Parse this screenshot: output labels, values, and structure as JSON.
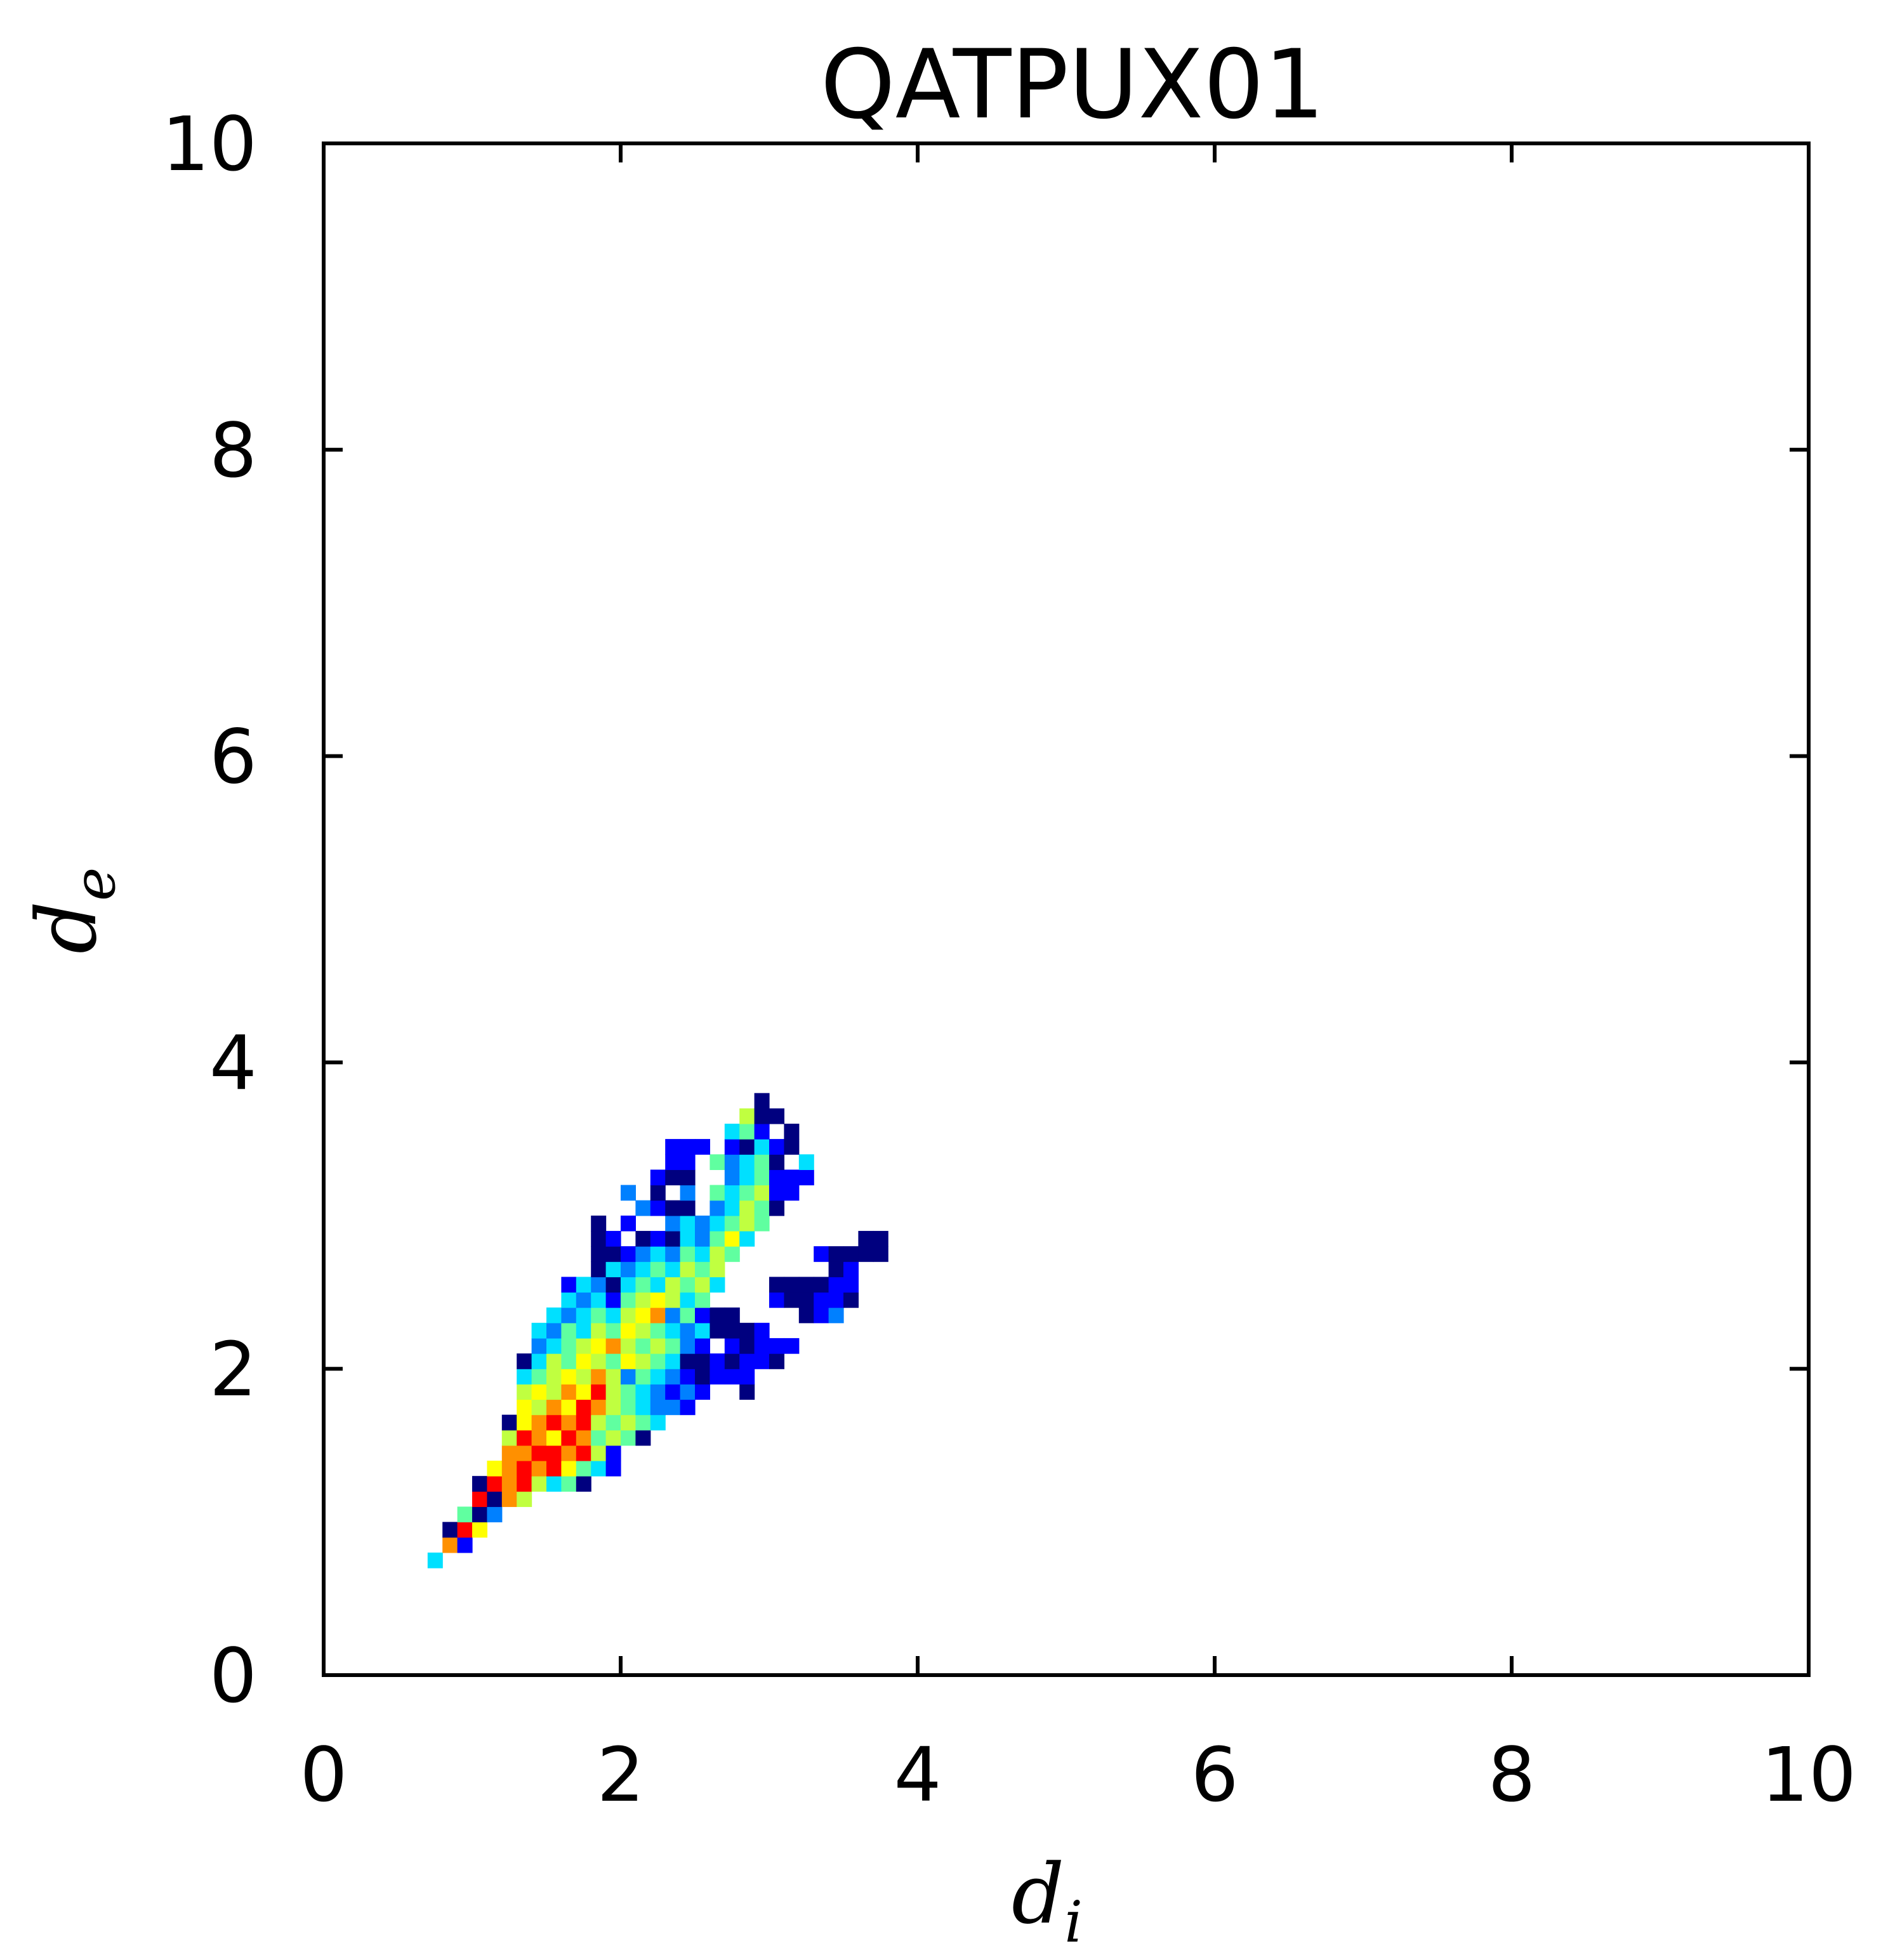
{
  "chart_data": {
    "type": "heatmap",
    "title": "QATPUX01",
    "xlabel": "d",
    "xlabel_sub": "i",
    "ylabel": "d",
    "ylabel_sub": "e",
    "xlim": [
      0,
      10
    ],
    "ylim": [
      0,
      10
    ],
    "xticks": [
      "0",
      "2",
      "4",
      "6",
      "8",
      "10"
    ],
    "yticks": [
      "0",
      "2",
      "4",
      "6",
      "8",
      "10"
    ],
    "grid": false,
    "bin_size": 0.1,
    "colormap": [
      "#00007f",
      "#0000ff",
      "#0080ff",
      "#00e0ff",
      "#60ffa0",
      "#c0ff40",
      "#ffff00",
      "#ff9000",
      "#ff0000"
    ],
    "cells": [
      [
        0.75,
        0.75,
        3
      ],
      [
        0.85,
        0.85,
        7
      ],
      [
        0.95,
        0.85,
        1
      ],
      [
        0.85,
        0.95,
        0
      ],
      [
        0.95,
        0.95,
        8
      ],
      [
        1.05,
        0.95,
        6
      ],
      [
        0.95,
        1.05,
        4
      ],
      [
        1.05,
        1.05,
        0
      ],
      [
        1.15,
        1.05,
        2
      ],
      [
        1.05,
        1.15,
        8
      ],
      [
        1.15,
        1.15,
        0
      ],
      [
        1.25,
        1.15,
        7
      ],
      [
        1.35,
        1.15,
        5
      ],
      [
        1.05,
        1.25,
        0
      ],
      [
        1.15,
        1.25,
        8
      ],
      [
        1.25,
        1.25,
        7
      ],
      [
        1.35,
        1.25,
        8
      ],
      [
        1.45,
        1.25,
        5
      ],
      [
        1.55,
        1.25,
        3
      ],
      [
        1.65,
        1.25,
        4
      ],
      [
        1.75,
        1.25,
        0
      ],
      [
        1.15,
        1.35,
        6
      ],
      [
        1.25,
        1.35,
        7
      ],
      [
        1.35,
        1.35,
        8
      ],
      [
        1.45,
        1.35,
        7
      ],
      [
        1.55,
        1.35,
        8
      ],
      [
        1.65,
        1.35,
        6
      ],
      [
        1.75,
        1.35,
        4
      ],
      [
        1.85,
        1.35,
        3
      ],
      [
        1.95,
        1.35,
        1
      ],
      [
        1.25,
        1.45,
        7
      ],
      [
        1.35,
        1.45,
        7
      ],
      [
        1.45,
        1.45,
        8
      ],
      [
        1.55,
        1.45,
        8
      ],
      [
        1.65,
        1.45,
        7
      ],
      [
        1.75,
        1.45,
        8
      ],
      [
        1.85,
        1.45,
        5
      ],
      [
        1.95,
        1.45,
        1
      ],
      [
        1.25,
        1.55,
        5
      ],
      [
        1.35,
        1.55,
        8
      ],
      [
        1.45,
        1.55,
        7
      ],
      [
        1.55,
        1.55,
        6
      ],
      [
        1.65,
        1.55,
        8
      ],
      [
        1.75,
        1.55,
        7
      ],
      [
        1.85,
        1.55,
        4
      ],
      [
        1.95,
        1.55,
        5
      ],
      [
        2.05,
        1.55,
        4
      ],
      [
        2.15,
        1.55,
        0
      ],
      [
        1.25,
        1.65,
        0
      ],
      [
        1.35,
        1.65,
        6
      ],
      [
        1.45,
        1.65,
        7
      ],
      [
        1.55,
        1.65,
        8
      ],
      [
        1.65,
        1.65,
        7
      ],
      [
        1.75,
        1.65,
        8
      ],
      [
        1.85,
        1.65,
        5
      ],
      [
        1.95,
        1.65,
        4
      ],
      [
        2.05,
        1.65,
        5
      ],
      [
        2.15,
        1.65,
        4
      ],
      [
        2.25,
        1.65,
        3
      ],
      [
        1.35,
        1.75,
        6
      ],
      [
        1.45,
        1.75,
        5
      ],
      [
        1.55,
        1.75,
        7
      ],
      [
        1.65,
        1.75,
        6
      ],
      [
        1.75,
        1.75,
        8
      ],
      [
        1.85,
        1.75,
        7
      ],
      [
        1.95,
        1.75,
        5
      ],
      [
        2.05,
        1.75,
        4
      ],
      [
        2.15,
        1.75,
        3
      ],
      [
        2.25,
        1.75,
        2
      ],
      [
        2.35,
        1.75,
        2
      ],
      [
        2.45,
        1.75,
        1
      ],
      [
        1.35,
        1.85,
        5
      ],
      [
        1.45,
        1.85,
        6
      ],
      [
        1.55,
        1.85,
        5
      ],
      [
        1.65,
        1.85,
        7
      ],
      [
        1.75,
        1.85,
        6
      ],
      [
        1.85,
        1.85,
        8
      ],
      [
        1.95,
        1.85,
        5
      ],
      [
        2.05,
        1.85,
        4
      ],
      [
        2.15,
        1.85,
        3
      ],
      [
        2.25,
        1.85,
        2
      ],
      [
        2.35,
        1.85,
        1
      ],
      [
        2.45,
        1.85,
        2
      ],
      [
        2.55,
        1.85,
        1
      ],
      [
        2.85,
        1.85,
        0
      ],
      [
        1.35,
        1.95,
        3
      ],
      [
        1.45,
        1.95,
        4
      ],
      [
        1.55,
        1.95,
        5
      ],
      [
        1.65,
        1.95,
        6
      ],
      [
        1.75,
        1.95,
        5
      ],
      [
        1.85,
        1.95,
        7
      ],
      [
        1.95,
        1.95,
        5
      ],
      [
        2.05,
        1.95,
        2
      ],
      [
        2.15,
        1.95,
        4
      ],
      [
        2.25,
        1.95,
        3
      ],
      [
        2.35,
        1.95,
        2
      ],
      [
        2.45,
        1.95,
        1
      ],
      [
        2.55,
        1.95,
        0
      ],
      [
        2.65,
        1.95,
        1
      ],
      [
        2.75,
        1.95,
        1
      ],
      [
        2.85,
        1.95,
        1
      ],
      [
        1.35,
        2.05,
        0
      ],
      [
        1.45,
        2.05,
        3
      ],
      [
        1.55,
        2.05,
        5
      ],
      [
        1.65,
        2.05,
        4
      ],
      [
        1.75,
        2.05,
        6
      ],
      [
        1.85,
        2.05,
        5
      ],
      [
        1.95,
        2.05,
        4
      ],
      [
        2.05,
        2.05,
        6
      ],
      [
        2.15,
        2.05,
        5
      ],
      [
        2.25,
        2.05,
        4
      ],
      [
        2.35,
        2.05,
        3
      ],
      [
        2.45,
        2.05,
        0
      ],
      [
        2.55,
        2.05,
        0
      ],
      [
        2.65,
        2.05,
        1
      ],
      [
        2.75,
        2.05,
        0
      ],
      [
        2.85,
        2.05,
        1
      ],
      [
        2.95,
        2.05,
        1
      ],
      [
        3.05,
        2.05,
        0
      ],
      [
        1.45,
        2.15,
        2
      ],
      [
        1.55,
        2.15,
        3
      ],
      [
        1.65,
        2.15,
        4
      ],
      [
        1.75,
        2.15,
        5
      ],
      [
        1.85,
        2.15,
        6
      ],
      [
        1.95,
        2.15,
        7
      ],
      [
        2.05,
        2.15,
        5
      ],
      [
        2.15,
        2.15,
        4
      ],
      [
        2.25,
        2.15,
        5
      ],
      [
        2.35,
        2.15,
        4
      ],
      [
        2.45,
        2.15,
        2
      ],
      [
        2.55,
        2.15,
        1
      ],
      [
        2.75,
        2.15,
        1
      ],
      [
        2.85,
        2.15,
        0
      ],
      [
        2.95,
        2.15,
        1
      ],
      [
        3.05,
        2.15,
        1
      ],
      [
        3.15,
        2.15,
        1
      ],
      [
        1.45,
        2.25,
        3
      ],
      [
        1.55,
        2.25,
        2
      ],
      [
        1.65,
        2.25,
        4
      ],
      [
        1.75,
        2.25,
        3
      ],
      [
        1.85,
        2.25,
        5
      ],
      [
        1.95,
        2.25,
        4
      ],
      [
        2.05,
        2.25,
        6
      ],
      [
        2.15,
        2.25,
        5
      ],
      [
        2.25,
        2.25,
        4
      ],
      [
        2.35,
        2.25,
        3
      ],
      [
        2.45,
        2.25,
        2
      ],
      [
        2.55,
        2.25,
        3
      ],
      [
        2.65,
        2.25,
        0
      ],
      [
        2.75,
        2.25,
        0
      ],
      [
        2.85,
        2.25,
        0
      ],
      [
        2.95,
        2.25,
        1
      ],
      [
        1.55,
        2.35,
        3
      ],
      [
        1.65,
        2.35,
        2
      ],
      [
        1.75,
        2.35,
        3
      ],
      [
        1.85,
        2.35,
        4
      ],
      [
        1.95,
        2.35,
        3
      ],
      [
        2.05,
        2.35,
        5
      ],
      [
        2.15,
        2.35,
        6
      ],
      [
        2.25,
        2.35,
        7
      ],
      [
        2.35,
        2.35,
        2
      ],
      [
        2.45,
        2.35,
        4
      ],
      [
        2.55,
        2.35,
        1
      ],
      [
        2.65,
        2.35,
        0
      ],
      [
        2.75,
        2.35,
        0
      ],
      [
        3.25,
        2.35,
        0
      ],
      [
        3.35,
        2.35,
        1
      ],
      [
        3.45,
        2.35,
        2
      ],
      [
        1.65,
        2.45,
        3
      ],
      [
        1.75,
        2.45,
        2
      ],
      [
        1.85,
        2.45,
        3
      ],
      [
        1.95,
        2.45,
        1
      ],
      [
        2.05,
        2.45,
        4
      ],
      [
        2.15,
        2.45,
        5
      ],
      [
        2.25,
        2.45,
        6
      ],
      [
        2.35,
        2.45,
        5
      ],
      [
        2.45,
        2.45,
        3
      ],
      [
        2.55,
        2.45,
        4
      ],
      [
        3.05,
        2.45,
        1
      ],
      [
        3.15,
        2.45,
        0
      ],
      [
        3.25,
        2.45,
        0
      ],
      [
        3.35,
        2.45,
        1
      ],
      [
        3.45,
        2.45,
        1
      ],
      [
        3.55,
        2.45,
        0
      ],
      [
        1.65,
        2.55,
        1
      ],
      [
        1.75,
        2.55,
        3
      ],
      [
        1.85,
        2.55,
        2
      ],
      [
        1.95,
        2.55,
        0
      ],
      [
        2.05,
        2.55,
        3
      ],
      [
        2.15,
        2.55,
        4
      ],
      [
        2.25,
        2.55,
        3
      ],
      [
        2.35,
        2.55,
        5
      ],
      [
        2.45,
        2.55,
        4
      ],
      [
        2.55,
        2.55,
        5
      ],
      [
        2.65,
        2.55,
        3
      ],
      [
        3.05,
        2.55,
        0
      ],
      [
        3.15,
        2.55,
        0
      ],
      [
        3.25,
        2.55,
        0
      ],
      [
        3.35,
        2.55,
        0
      ],
      [
        3.45,
        2.55,
        1
      ],
      [
        3.55,
        2.55,
        1
      ],
      [
        1.85,
        2.65,
        0
      ],
      [
        1.95,
        2.65,
        3
      ],
      [
        2.05,
        2.65,
        2
      ],
      [
        2.15,
        2.65,
        3
      ],
      [
        2.25,
        2.65,
        4
      ],
      [
        2.35,
        2.65,
        3
      ],
      [
        2.45,
        2.65,
        5
      ],
      [
        2.55,
        2.65,
        4
      ],
      [
        2.65,
        2.65,
        5
      ],
      [
        3.45,
        2.65,
        0
      ],
      [
        3.55,
        2.65,
        1
      ],
      [
        1.85,
        2.75,
        0
      ],
      [
        1.95,
        2.75,
        0
      ],
      [
        2.05,
        2.75,
        1
      ],
      [
        2.15,
        2.75,
        2
      ],
      [
        2.25,
        2.75,
        3
      ],
      [
        2.35,
        2.75,
        2
      ],
      [
        2.45,
        2.75,
        4
      ],
      [
        2.55,
        2.75,
        3
      ],
      [
        2.65,
        2.75,
        5
      ],
      [
        2.75,
        2.75,
        4
      ],
      [
        3.35,
        2.75,
        1
      ],
      [
        3.45,
        2.75,
        0
      ],
      [
        3.55,
        2.75,
        0
      ],
      [
        3.65,
        2.75,
        0
      ],
      [
        3.75,
        2.75,
        0
      ],
      [
        1.85,
        2.85,
        0
      ],
      [
        1.95,
        2.85,
        1
      ],
      [
        2.15,
        2.85,
        0
      ],
      [
        2.25,
        2.85,
        1
      ],
      [
        2.35,
        2.85,
        0
      ],
      [
        2.45,
        2.85,
        3
      ],
      [
        2.55,
        2.85,
        2
      ],
      [
        2.65,
        2.85,
        4
      ],
      [
        2.75,
        2.85,
        6
      ],
      [
        2.85,
        2.85,
        3
      ],
      [
        3.65,
        2.85,
        0
      ],
      [
        3.75,
        2.85,
        0
      ],
      [
        1.85,
        2.95,
        0
      ],
      [
        2.05,
        2.95,
        1
      ],
      [
        2.35,
        2.95,
        2
      ],
      [
        2.45,
        2.95,
        3
      ],
      [
        2.55,
        2.95,
        2
      ],
      [
        2.65,
        2.95,
        3
      ],
      [
        2.75,
        2.95,
        4
      ],
      [
        2.85,
        2.95,
        5
      ],
      [
        2.95,
        2.95,
        4
      ],
      [
        2.15,
        3.05,
        2
      ],
      [
        2.25,
        3.05,
        1
      ],
      [
        2.35,
        3.05,
        0
      ],
      [
        2.45,
        3.05,
        0
      ],
      [
        2.65,
        3.05,
        2
      ],
      [
        2.75,
        3.05,
        3
      ],
      [
        2.85,
        3.05,
        5
      ],
      [
        2.95,
        3.05,
        4
      ],
      [
        3.05,
        3.05,
        0
      ],
      [
        2.05,
        3.15,
        2
      ],
      [
        2.25,
        3.15,
        0
      ],
      [
        2.45,
        3.15,
        2
      ],
      [
        2.65,
        3.15,
        4
      ],
      [
        2.75,
        3.15,
        3
      ],
      [
        2.85,
        3.15,
        4
      ],
      [
        2.95,
        3.15,
        5
      ],
      [
        3.05,
        3.15,
        1
      ],
      [
        3.15,
        3.15,
        1
      ],
      [
        2.25,
        3.25,
        1
      ],
      [
        2.35,
        3.25,
        0
      ],
      [
        2.45,
        3.25,
        0
      ],
      [
        2.75,
        3.25,
        2
      ],
      [
        2.85,
        3.25,
        3
      ],
      [
        2.95,
        3.25,
        4
      ],
      [
        3.05,
        3.25,
        1
      ],
      [
        3.15,
        3.25,
        1
      ],
      [
        3.25,
        3.25,
        1
      ],
      [
        2.35,
        3.35,
        1
      ],
      [
        2.45,
        3.35,
        1
      ],
      [
        2.65,
        3.35,
        4
      ],
      [
        2.75,
        3.35,
        2
      ],
      [
        2.85,
        3.35,
        3
      ],
      [
        2.95,
        3.35,
        4
      ],
      [
        3.05,
        3.35,
        0
      ],
      [
        3.25,
        3.35,
        3
      ],
      [
        2.35,
        3.45,
        1
      ],
      [
        2.45,
        3.45,
        1
      ],
      [
        2.55,
        3.45,
        1
      ],
      [
        2.75,
        3.45,
        1
      ],
      [
        2.85,
        3.45,
        0
      ],
      [
        2.95,
        3.45,
        3
      ],
      [
        3.05,
        3.45,
        1
      ],
      [
        3.15,
        3.45,
        0
      ],
      [
        2.75,
        3.55,
        3
      ],
      [
        2.85,
        3.55,
        4
      ],
      [
        2.95,
        3.55,
        1
      ],
      [
        3.15,
        3.55,
        0
      ],
      [
        2.85,
        3.65,
        5
      ],
      [
        2.95,
        3.65,
        0
      ],
      [
        3.05,
        3.65,
        0
      ],
      [
        2.95,
        3.75,
        0
      ]
    ]
  }
}
